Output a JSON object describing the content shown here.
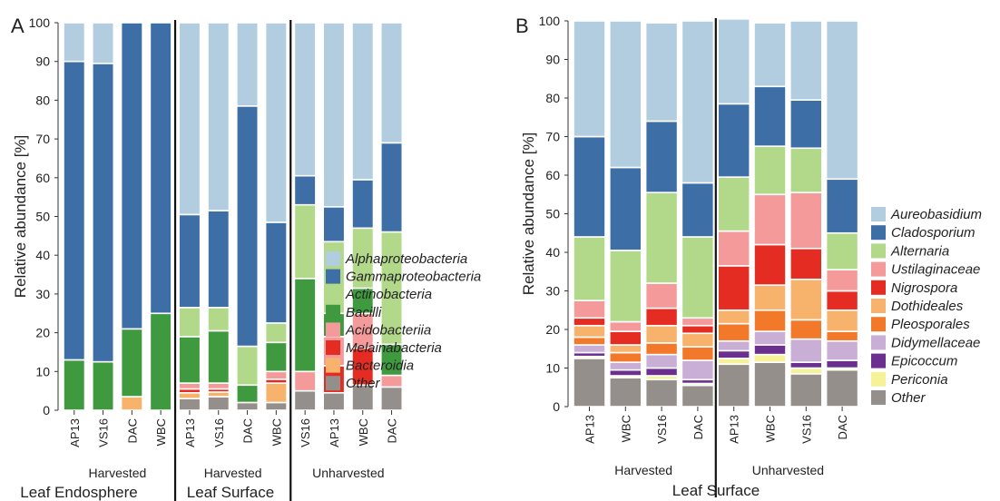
{
  "chart_data": [
    {
      "panel": "A",
      "type": "stacked-bar",
      "ylabel": "Relative abundance [%]",
      "ylim": [
        0,
        100
      ],
      "yticks": [
        "0",
        "10",
        "20",
        "30",
        "40",
        "50",
        "60",
        "70",
        "80",
        "90",
        "100"
      ],
      "categories": [
        "AP13",
        "VS16",
        "DAC",
        "WBC",
        "AP13",
        "VS16",
        "DAC",
        "WBC",
        "VS16",
        "AP13",
        "WBC",
        "DAC"
      ],
      "groups": [
        {
          "label": "Harvested",
          "start": 0,
          "end": 3
        },
        {
          "label": "Harvested",
          "start": 4,
          "end": 7
        },
        {
          "label": "Unharvested",
          "start": 8,
          "end": 11
        }
      ],
      "sections": [
        {
          "label": "Leaf Endosphere",
          "start": 0,
          "end": 3
        },
        {
          "label": "Leaf Surface",
          "start": 4,
          "end": 11
        }
      ],
      "separators_after": [
        3,
        7
      ],
      "legend_position": "right",
      "series": [
        {
          "name": "Other",
          "color": "#958f8b",
          "values": [
            0,
            0,
            0,
            0,
            3,
            3.5,
            2,
            2,
            5,
            4.5,
            6.5,
            6
          ]
        },
        {
          "name": "Bacteroidia",
          "color": "#f7b36b",
          "values": [
            0,
            0,
            3.5,
            0,
            1.5,
            1.2,
            0,
            5,
            0,
            0,
            0,
            0
          ]
        },
        {
          "name": "Melainabacteria",
          "color": "#e42c23",
          "values": [
            0,
            0,
            0,
            0,
            1,
            0.8,
            0,
            1,
            0,
            7,
            9.5,
            0
          ]
        },
        {
          "name": "Acidobacteriia",
          "color": "#f49a9a",
          "values": [
            0,
            0,
            0,
            0,
            1.5,
            1.5,
            0,
            2,
            5,
            7.5,
            9,
            3
          ]
        },
        {
          "name": "Bacilli",
          "color": "#3f9a3f",
          "values": [
            13,
            12.5,
            17.5,
            25,
            12,
            13.5,
            4.5,
            7.5,
            24,
            6,
            6.5,
            8
          ]
        },
        {
          "name": "Actinobacteria",
          "color": "#b2d889",
          "values": [
            0,
            0,
            0,
            0,
            7.5,
            6,
            10,
            5,
            19,
            18.5,
            15.5,
            29
          ]
        },
        {
          "name": "Gammaproteobacteria",
          "color": "#3e6ea6",
          "values": [
            77,
            77,
            79,
            75,
            24,
            25,
            62,
            26,
            7.5,
            9,
            12.5,
            23
          ]
        },
        {
          "name": "Alphaproteobacteria",
          "color": "#b2cde0",
          "values": [
            10,
            10.5,
            0,
            0,
            49.5,
            48.5,
            21.5,
            51.5,
            39.5,
            47.5,
            40.5,
            31
          ]
        }
      ]
    },
    {
      "panel": "B",
      "type": "stacked-bar",
      "ylabel": "Relative abundance [%]",
      "ylim": [
        0,
        100
      ],
      "yticks": [
        "0",
        "10",
        "20",
        "30",
        "40",
        "50",
        "60",
        "70",
        "80",
        "90",
        "100"
      ],
      "categories": [
        "AP13",
        "WBC",
        "VS16",
        "DAC",
        "AP13",
        "WBC",
        "VS16",
        "DAC"
      ],
      "groups": [
        {
          "label": "Harvested",
          "start": 0,
          "end": 3
        },
        {
          "label": "Unharvested",
          "start": 4,
          "end": 7
        }
      ],
      "sections": [
        {
          "label": "Leaf Surface",
          "start": 0,
          "end": 7
        }
      ],
      "separators_after": [
        3
      ],
      "legend_position": "right",
      "series": [
        {
          "name": "Other",
          "color": "#958f8b",
          "values": [
            12.5,
            7.5,
            7,
            5.5,
            11,
            11.5,
            8.5,
            9.5
          ]
        },
        {
          "name": "Periconia",
          "color": "#f6f29a",
          "values": [
            0.5,
            0.5,
            1,
            0.5,
            1.5,
            2,
            1.5,
            0.5
          ]
        },
        {
          "name": "Epicoccum",
          "color": "#6b2f8f",
          "values": [
            1,
            1.5,
            2,
            1,
            2,
            2.5,
            1.5,
            2
          ]
        },
        {
          "name": "Didymellaceae",
          "color": "#c9aed6",
          "values": [
            2,
            2,
            3.5,
            5,
            2.5,
            3.5,
            6,
            5
          ]
        },
        {
          "name": "Pleosporales",
          "color": "#f3792a",
          "values": [
            2,
            2.5,
            3,
            3.5,
            4.5,
            5.5,
            5,
            2.5
          ]
        },
        {
          "name": "Dothideales",
          "color": "#f7b36b",
          "values": [
            3,
            2,
            4.5,
            3.5,
            3.5,
            6.5,
            10.5,
            5.5
          ]
        },
        {
          "name": "Nigrospora",
          "color": "#e42c23",
          "values": [
            2,
            3.5,
            4.5,
            2,
            11.5,
            10.5,
            8,
            5
          ]
        },
        {
          "name": "Ustilaginaceae",
          "color": "#f49a9a",
          "values": [
            4.5,
            2.5,
            6.5,
            2,
            9,
            13,
            14.5,
            5.5
          ]
        },
        {
          "name": "Alternaria",
          "color": "#b2d889",
          "values": [
            16.5,
            18.5,
            23.5,
            21,
            14,
            12.5,
            11.5,
            9.5
          ]
        },
        {
          "name": "Cladosporium",
          "color": "#3e6ea6",
          "values": [
            26,
            21.5,
            18.5,
            14,
            19,
            15.5,
            12.5,
            14
          ]
        },
        {
          "name": "Aureobasidium",
          "color": "#b2cde0",
          "values": [
            30,
            38,
            25.5,
            42,
            22,
            16.5,
            20.5,
            41
          ]
        }
      ]
    }
  ],
  "legend_left": [
    "Alphaproteobacteria",
    "Gammaproteobacteria",
    "Actinobacteria",
    "Bacilli",
    "Acidobacteriia",
    "Melainabacteria",
    "Bacteroidia",
    "Other"
  ],
  "legend_right": [
    "Aureobasidium",
    "Cladosporium",
    "Alternaria",
    "Ustilaginaceae",
    "Nigrospora",
    "Dothideales",
    "Pleosporales",
    "Didymellaceae",
    "Epicoccum",
    "Periconia",
    "Other"
  ]
}
